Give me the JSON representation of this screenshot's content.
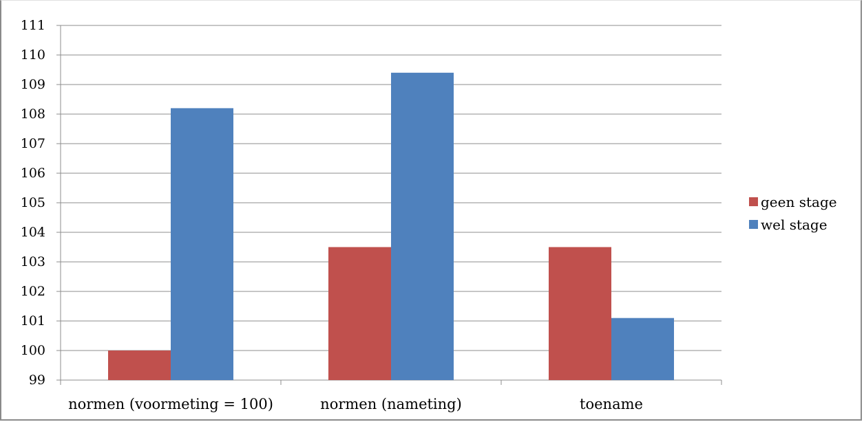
{
  "chart_data": {
    "type": "bar",
    "categories": [
      "normen (voormeting = 100)",
      "normen (nameting)",
      "toename"
    ],
    "series": [
      {
        "name": "geen stage",
        "color": "#C0504D",
        "values": [
          100.0,
          103.5,
          103.5
        ]
      },
      {
        "name": "wel stage",
        "color": "#4F81BD",
        "values": [
          108.2,
          109.4,
          101.1
        ]
      }
    ],
    "ylim": [
      99,
      111
    ],
    "yticks": [
      99,
      100,
      101,
      102,
      103,
      104,
      105,
      106,
      107,
      108,
      109,
      110,
      111
    ],
    "grid": true,
    "legend_position": "right"
  }
}
